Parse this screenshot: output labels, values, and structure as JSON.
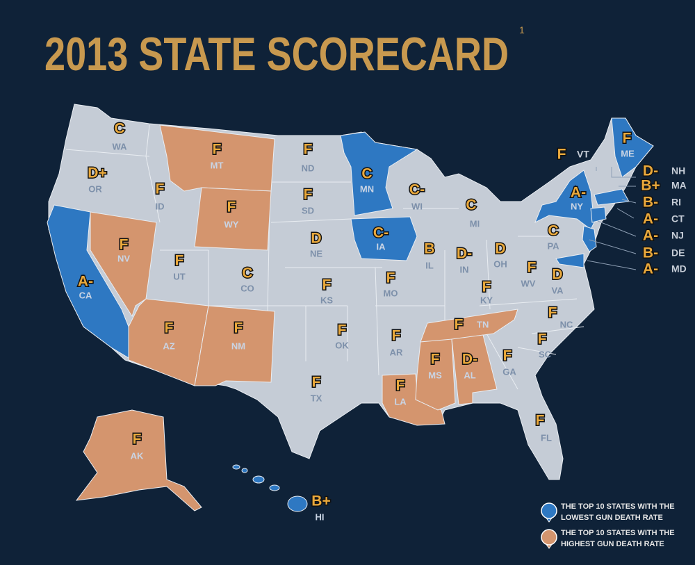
{
  "title": "2013 STATE SCORECARD",
  "footnote": "1",
  "states": [
    {
      "abbr": "WA",
      "grade": "C"
    },
    {
      "abbr": "OR",
      "grade": "D+"
    },
    {
      "abbr": "CA",
      "grade": "A-",
      "color": "#2e78c2"
    },
    {
      "abbr": "ID",
      "grade": "F"
    },
    {
      "abbr": "NV",
      "grade": "F",
      "color": "#d4956e"
    },
    {
      "abbr": "MT",
      "grade": "F",
      "color": "#d4956e"
    },
    {
      "abbr": "WY",
      "grade": "F",
      "color": "#d4956e"
    },
    {
      "abbr": "UT",
      "grade": "F"
    },
    {
      "abbr": "AZ",
      "grade": "F",
      "color": "#d4956e"
    },
    {
      "abbr": "CO",
      "grade": "C"
    },
    {
      "abbr": "NM",
      "grade": "F",
      "color": "#d4956e"
    },
    {
      "abbr": "ND",
      "grade": "F"
    },
    {
      "abbr": "SD",
      "grade": "F"
    },
    {
      "abbr": "NE",
      "grade": "D"
    },
    {
      "abbr": "KS",
      "grade": "F"
    },
    {
      "abbr": "OK",
      "grade": "F"
    },
    {
      "abbr": "TX",
      "grade": "F"
    },
    {
      "abbr": "MN",
      "grade": "C",
      "color": "#2e78c2"
    },
    {
      "abbr": "IA",
      "grade": "C-",
      "color": "#2e78c2"
    },
    {
      "abbr": "MO",
      "grade": "F"
    },
    {
      "abbr": "AR",
      "grade": "F"
    },
    {
      "abbr": "LA",
      "grade": "F",
      "color": "#d4956e"
    },
    {
      "abbr": "WI",
      "grade": "C-"
    },
    {
      "abbr": "IL",
      "grade": "B"
    },
    {
      "abbr": "MI",
      "grade": "C"
    },
    {
      "abbr": "IN",
      "grade": "D-"
    },
    {
      "abbr": "OH",
      "grade": "D"
    },
    {
      "abbr": "KY",
      "grade": "F"
    },
    {
      "abbr": "TN",
      "grade": "F",
      "color": "#d4956e"
    },
    {
      "abbr": "MS",
      "grade": "F",
      "color": "#d4956e"
    },
    {
      "abbr": "AL",
      "grade": "D-",
      "color": "#d4956e"
    },
    {
      "abbr": "GA",
      "grade": "F"
    },
    {
      "abbr": "FL",
      "grade": "F"
    },
    {
      "abbr": "SC",
      "grade": "F"
    },
    {
      "abbr": "NC",
      "grade": "F"
    },
    {
      "abbr": "VA",
      "grade": "D"
    },
    {
      "abbr": "WV",
      "grade": "F"
    },
    {
      "abbr": "PA",
      "grade": "C"
    },
    {
      "abbr": "NY",
      "grade": "A-",
      "color": "#2e78c2"
    },
    {
      "abbr": "VT",
      "grade": "F"
    },
    {
      "abbr": "NH",
      "grade": "D-"
    },
    {
      "abbr": "ME",
      "grade": "F",
      "color": "#2e78c2"
    },
    {
      "abbr": "MA",
      "grade": "B+",
      "color": "#2e78c2"
    },
    {
      "abbr": "RI",
      "grade": "B-"
    },
    {
      "abbr": "CT",
      "grade": "A-",
      "color": "#2e78c2"
    },
    {
      "abbr": "NJ",
      "grade": "A-",
      "color": "#2e78c2"
    },
    {
      "abbr": "DE",
      "grade": "B-"
    },
    {
      "abbr": "MD",
      "grade": "A-",
      "color": "#2e78c2"
    },
    {
      "abbr": "AK",
      "grade": "F",
      "color": "#d4956e"
    },
    {
      "abbr": "HI",
      "grade": "B+",
      "color": "#2e78c2"
    }
  ],
  "legend": [
    {
      "lines": [
        "THE TOP 10 STATES WITH THE",
        "LOWEST GUN DEATH RATE"
      ],
      "color": "#2e78c2"
    },
    {
      "lines": [
        "THE TOP 10 STATES WITH THE",
        "HIGHEST GUN DEATH RATE"
      ],
      "color": "#d4956e"
    }
  ]
}
